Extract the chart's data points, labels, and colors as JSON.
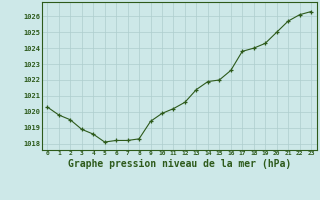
{
  "x": [
    0,
    1,
    2,
    3,
    4,
    5,
    6,
    7,
    8,
    9,
    10,
    11,
    12,
    13,
    14,
    15,
    16,
    17,
    18,
    19,
    20,
    21,
    22,
    23
  ],
  "y": [
    1020.3,
    1019.8,
    1019.5,
    1018.9,
    1018.6,
    1018.1,
    1018.2,
    1018.2,
    1018.3,
    1019.4,
    1019.9,
    1020.2,
    1020.6,
    1021.4,
    1021.9,
    1022.0,
    1022.6,
    1023.8,
    1024.0,
    1024.3,
    1025.0,
    1025.7,
    1026.1,
    1026.3
  ],
  "line_color": "#2d5a1b",
  "marker_color": "#2d5a1b",
  "bg_color": "#cde8e8",
  "grid_color": "#aecece",
  "xlabel": "Graphe pression niveau de la mer (hPa)",
  "xlabel_color": "#2d5a1b",
  "xlabel_fontsize": 7,
  "yticks": [
    1018,
    1019,
    1020,
    1021,
    1022,
    1023,
    1024,
    1025,
    1026
  ],
  "ylim": [
    1017.6,
    1026.9
  ],
  "xtick_labels": [
    "0",
    "1",
    "2",
    "3",
    "4",
    "5",
    "6",
    "7",
    "8",
    "9",
    "10",
    "11",
    "12",
    "13",
    "14",
    "15",
    "16",
    "17",
    "18",
    "19",
    "20",
    "21",
    "22",
    "23"
  ],
  "tick_color": "#2d5a1b"
}
